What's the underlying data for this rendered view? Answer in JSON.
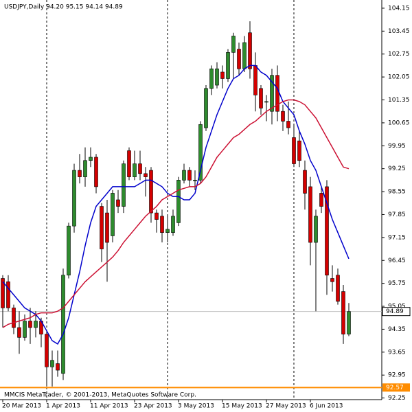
{
  "chart_data": {
    "type": "candlestick",
    "title": "USDJPY,Daily  94.20 95.15 94.14 94.89",
    "watermark": "MMCIS MetaTrader, © 2001-2013, MetaQuotes Software Corp.",
    "categories": [
      "20 Mar 2013",
      null,
      null,
      null,
      null,
      null,
      null,
      null,
      "1 Apr 2013",
      null,
      null,
      null,
      null,
      null,
      null,
      null,
      "11 Apr 2013",
      null,
      null,
      null,
      null,
      null,
      null,
      null,
      "23 Apr 2013",
      null,
      null,
      null,
      null,
      null,
      null,
      null,
      "3 May 2013",
      null,
      null,
      null,
      null,
      null,
      null,
      null,
      "15 May 2013",
      null,
      null,
      null,
      null,
      null,
      null,
      null,
      "27 May 2013",
      null,
      null,
      null,
      null,
      null,
      null,
      null,
      "6 Jun 2013",
      null,
      null,
      null,
      null,
      null,
      null,
      null
    ],
    "open": [
      95.9,
      95.8,
      95.0,
      94.4,
      94.1,
      94.6,
      94.4,
      94.6,
      94.2,
      93.2,
      93.3,
      93.0,
      96.0,
      97.5,
      99.2,
      99.0,
      99.5,
      99.6,
      98.1,
      97.9,
      97.2,
      98.3,
      98.1,
      99.8,
      99.0,
      99.4,
      99.1,
      99.2,
      97.9,
      97.8,
      97.3,
      97.3,
      97.6,
      98.9,
      99.2,
      98.9,
      98.9,
      100.5,
      101.7,
      101.8,
      102.2,
      102.0,
      102.8,
      102.9,
      102.3,
      103.4,
      102.4,
      101.7,
      101.3,
      101.0,
      102.1,
      101.0,
      100.7,
      100.2,
      100.1,
      99.2,
      98.7,
      97.0,
      98.5,
      98.7,
      95.9,
      96.0,
      95.5,
      94.2
    ],
    "high": [
      96.0,
      96.0,
      95.1,
      94.9,
      94.8,
      95.0,
      94.9,
      94.7,
      94.3,
      93.7,
      93.7,
      96.2,
      97.6,
      99.4,
      99.7,
      99.9,
      99.9,
      99.7,
      98.2,
      98.3,
      98.6,
      98.6,
      99.5,
      99.9,
      99.8,
      99.8,
      99.3,
      99.3,
      98.0,
      98.0,
      97.8,
      98.0,
      99.0,
      99.4,
      99.3,
      99.2,
      100.7,
      101.8,
      102.4,
      102.5,
      102.4,
      102.9,
      103.4,
      103.1,
      103.3,
      103.75,
      102.8,
      101.8,
      101.5,
      102.3,
      102.4,
      101.2,
      101.3,
      100.6,
      100.4,
      99.5,
      99.0,
      98.0,
      98.7,
      98.9,
      96.3,
      96.2,
      95.7,
      95.15
    ],
    "low": [
      94.4,
      94.9,
      94.2,
      93.6,
      94.0,
      93.9,
      94.1,
      93.8,
      92.6,
      92.6,
      92.9,
      92.8,
      95.9,
      97.3,
      98.8,
      98.7,
      99.3,
      98.5,
      96.4,
      95.8,
      97.0,
      97.9,
      97.9,
      98.9,
      98.9,
      98.9,
      98.4,
      97.6,
      97.3,
      97.0,
      97.0,
      97.2,
      97.5,
      98.8,
      98.7,
      98.6,
      98.8,
      100.4,
      101.5,
      101.7,
      101.7,
      101.9,
      102.0,
      102.1,
      102.2,
      102.0,
      101.0,
      100.9,
      100.7,
      100.6,
      100.7,
      100.4,
      100.3,
      99.3,
      99.3,
      98.0,
      96.3,
      94.9,
      97.9,
      95.4,
      95.5,
      95.1,
      93.9,
      94.14
    ],
    "close": [
      95.0,
      95.0,
      94.4,
      94.1,
      94.6,
      94.4,
      94.6,
      94.2,
      93.2,
      93.4,
      93.1,
      96.0,
      97.5,
      99.2,
      99.0,
      99.5,
      99.6,
      98.7,
      96.8,
      97.0,
      98.5,
      98.1,
      99.4,
      99.0,
      99.4,
      99.1,
      99.0,
      97.9,
      97.7,
      97.3,
      97.4,
      97.8,
      98.9,
      99.2,
      98.9,
      98.9,
      100.6,
      101.7,
      102.3,
      102.3,
      102.0,
      102.8,
      103.3,
      102.3,
      103.1,
      102.3,
      101.5,
      101.1,
      101.3,
      102.1,
      101.0,
      100.7,
      100.5,
      99.4,
      99.5,
      98.5,
      97.0,
      97.8,
      98.1,
      96.0,
      95.8,
      95.2,
      94.2,
      94.89
    ],
    "up_color": "#2e8b2e",
    "down_color": "#d40000",
    "series": [
      {
        "color": "#0000cc",
        "values": [
          95.8,
          95.6,
          95.4,
          95.2,
          95.0,
          94.9,
          94.8,
          94.6,
          94.3,
          94.0,
          93.9,
          94.2,
          94.7,
          95.4,
          96.1,
          96.9,
          97.6,
          98.1,
          98.3,
          98.5,
          98.7,
          98.7,
          98.7,
          98.7,
          98.7,
          98.8,
          98.9,
          98.9,
          98.8,
          98.7,
          98.5,
          98.4,
          98.4,
          98.3,
          98.3,
          98.5,
          99.2,
          99.9,
          100.4,
          100.9,
          101.3,
          101.7,
          102.0,
          102.1,
          102.3,
          102.4,
          102.4,
          102.2,
          102.1,
          101.9,
          101.7,
          101.3,
          101.1,
          100.9,
          100.4,
          100.0,
          99.5,
          99.2,
          98.7,
          98.2,
          97.7,
          97.3,
          96.9,
          96.5
        ]
      },
      {
        "color": "#cc1133",
        "values": [
          94.4,
          94.5,
          94.55,
          94.6,
          94.65,
          94.7,
          94.8,
          94.85,
          94.85,
          94.85,
          94.9,
          95.0,
          95.2,
          95.4,
          95.6,
          95.8,
          95.95,
          96.1,
          96.25,
          96.4,
          96.55,
          96.75,
          97.0,
          97.2,
          97.4,
          97.6,
          97.8,
          97.95,
          98.1,
          98.3,
          98.4,
          98.5,
          98.6,
          98.65,
          98.7,
          98.7,
          98.8,
          99.0,
          99.3,
          99.6,
          99.8,
          100.0,
          100.2,
          100.3,
          100.45,
          100.6,
          100.7,
          100.85,
          101.0,
          101.1,
          101.2,
          101.3,
          101.35,
          101.35,
          101.3,
          101.2,
          101.0,
          100.8,
          100.5,
          100.2,
          99.9,
          99.6,
          99.3,
          99.25
        ]
      }
    ],
    "ylim": [
      92.2,
      104.4
    ],
    "yticks": [
      104.15,
      103.45,
      102.75,
      102.05,
      101.35,
      100.65,
      99.95,
      99.25,
      98.55,
      97.85,
      97.15,
      96.45,
      95.75,
      95.05,
      94.35,
      93.65,
      92.95,
      92.25
    ],
    "price_line": {
      "value": 94.89,
      "color": "#c0c0c0"
    },
    "level_line": {
      "value": 92.57,
      "color": "#ff8c00"
    }
  }
}
